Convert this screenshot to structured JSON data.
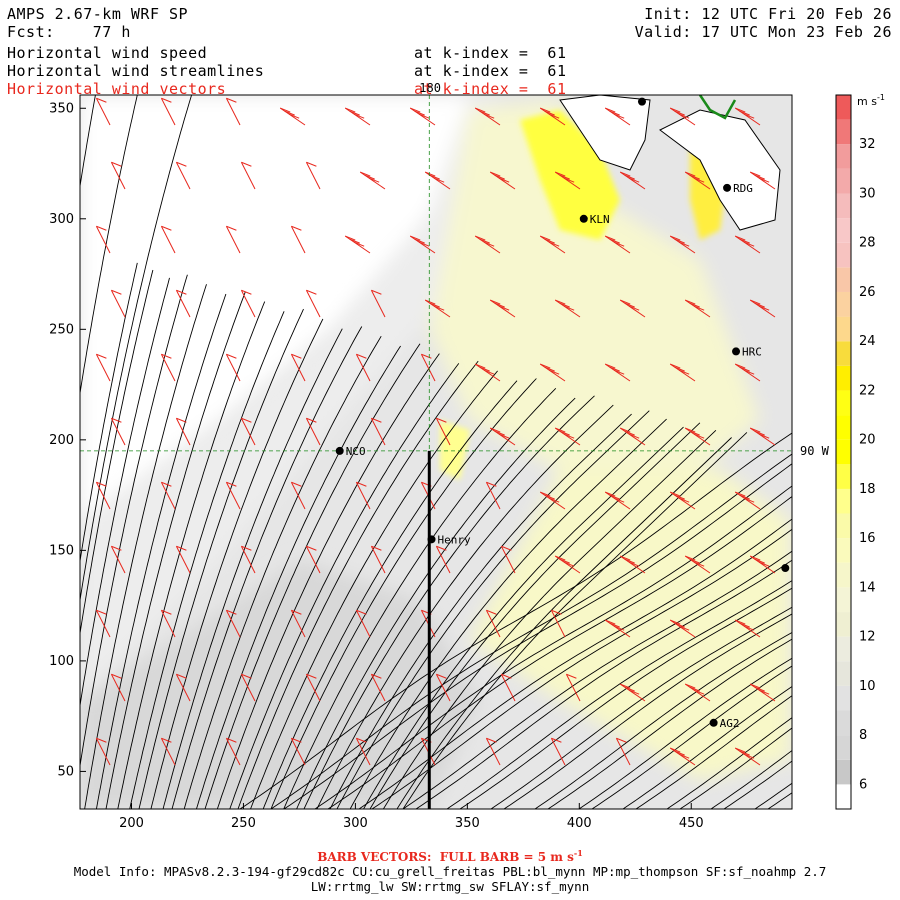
{
  "header": {
    "model_title": "AMPS 2.67-km WRF SP",
    "forecast": "Fcst:    77 h",
    "init": "Init: 12 UTC Fri 20 Feb 26",
    "valid": "Valid: 17 UTC Mon 23 Feb 26",
    "fields": [
      {
        "name": "Horizontal wind speed",
        "level": "at k-index =  61",
        "color": "#000000"
      },
      {
        "name": "Horizontal wind streamlines",
        "level": "at k-index =  61",
        "color": "#000000"
      },
      {
        "name": "Horizontal wind vectors",
        "level": "at k-index =  61",
        "color": "#e8281e"
      }
    ]
  },
  "footer": {
    "barb_note": "BARB VECTORS:  FULL BARB = 5 m s",
    "barb_note_sup": "-1",
    "model_info_line1": "Model Info: MPASv8.2.3-194-gf29cd82c CU:cu_grell_freitas PBL:bl_mynn MP:mp_thompson SF:sf_noahmp 2.7",
    "model_info_line2": "LW:rrtmg_lw SW:rrtmg_sw SFLAY:sf_mynn"
  },
  "colorbar": {
    "unit": "m s",
    "unit_sup": "-1",
    "bands": [
      {
        "from": 5,
        "to": 6,
        "color": "#ffffff"
      },
      {
        "from": 6,
        "to": 7,
        "color": "#c8c8c8"
      },
      {
        "from": 7,
        "to": 8,
        "color": "#d6d6d6"
      },
      {
        "from": 8,
        "to": 9,
        "color": "#dadada"
      },
      {
        "from": 9,
        "to": 10,
        "color": "#e2e2e2"
      },
      {
        "from": 10,
        "to": 11,
        "color": "#e6e6dc"
      },
      {
        "from": 11,
        "to": 12,
        "color": "#ececdf"
      },
      {
        "from": 12,
        "to": 13,
        "color": "#efefd2"
      },
      {
        "from": 13,
        "to": 14,
        "color": "#f4f4d6"
      },
      {
        "from": 14,
        "to": 15,
        "color": "#f6f6ca"
      },
      {
        "from": 15,
        "to": 16,
        "color": "#fafabc"
      },
      {
        "from": 16,
        "to": 17,
        "color": "#fafaa9"
      },
      {
        "from": 17,
        "to": 18,
        "color": "#ffff8c"
      },
      {
        "from": 18,
        "to": 19,
        "color": "#ffff46"
      },
      {
        "from": 19,
        "to": 20,
        "color": "#ffff00"
      },
      {
        "from": 20,
        "to": 21,
        "color": "#ffff00"
      },
      {
        "from": 21,
        "to": 22,
        "color": "#ffff14"
      },
      {
        "from": 22,
        "to": 23,
        "color": "#ffee00"
      },
      {
        "from": 23,
        "to": 24,
        "color": "#f8dc3c"
      },
      {
        "from": 24,
        "to": 25,
        "color": "#fdd88c"
      },
      {
        "from": 25,
        "to": 26,
        "color": "#fbd2a0"
      },
      {
        "from": 26,
        "to": 27,
        "color": "#f9c7a8"
      },
      {
        "from": 27,
        "to": 28,
        "color": "#f7c3c0"
      },
      {
        "from": 28,
        "to": 29,
        "color": "#f8c8c8"
      },
      {
        "from": 29,
        "to": 30,
        "color": "#f5bcbc"
      },
      {
        "from": 30,
        "to": 31,
        "color": "#f3aaaa"
      },
      {
        "from": 31,
        "to": 32,
        "color": "#f29c9c"
      },
      {
        "from": 32,
        "to": 33,
        "color": "#f07878"
      },
      {
        "from": 33,
        "to": 34,
        "color": "#ee5a5a"
      }
    ],
    "min": 5,
    "max": 34,
    "tick_labels": [
      6,
      8,
      10,
      12,
      14,
      16,
      18,
      20,
      22,
      24,
      26,
      28,
      30,
      32
    ]
  },
  "chart_data": {
    "type": "heatmap",
    "title": "AMPS 2.67-km WRF SP",
    "xlim": [
      177,
      495
    ],
    "ylim": [
      33,
      356
    ],
    "xticks": [
      200,
      250,
      300,
      350,
      400,
      450
    ],
    "yticks": [
      50,
      100,
      150,
      200,
      250,
      300,
      350
    ],
    "grid_lines": [
      {
        "label": "180",
        "axis": "x",
        "value": 333
      },
      {
        "label": "90 W",
        "axis": "y",
        "value": 195
      }
    ],
    "cross_section": {
      "x": 333,
      "y_from": 33,
      "y_to": 195
    },
    "stations": [
      {
        "name": "NCO",
        "x": 293,
        "y": 195
      },
      {
        "name": "Henry",
        "x": 334,
        "y": 155
      },
      {
        "name": "KLN",
        "x": 402,
        "y": 300
      },
      {
        "name": "RDG",
        "x": 466,
        "y": 314
      },
      {
        "name": "HRC",
        "x": 470,
        "y": 240
      },
      {
        "name": "AG2",
        "x": 460,
        "y": 72
      },
      {
        "name": "",
        "x": 492,
        "y": 142
      },
      {
        "name": "",
        "x": 428,
        "y": 353
      }
    ],
    "speed_regions": [
      {
        "desc": "calm-white-northwest",
        "speed": 5
      },
      {
        "desc": "light-grey-southwest",
        "speed": 9
      },
      {
        "desc": "pale-yellow-central-east",
        "speed": 15
      },
      {
        "desc": "yellow-coastal-north",
        "speed": 20
      },
      {
        "desc": "pale-yellow-southeast",
        "speed": 14
      }
    ]
  }
}
